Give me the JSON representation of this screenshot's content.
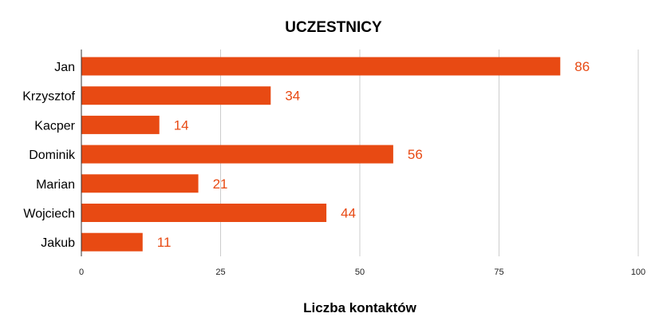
{
  "colors": {
    "bar": "#E84A13",
    "data_label": "#E84A13",
    "grid": "#cccccc",
    "axis": "#333333"
  },
  "chart_data": {
    "type": "bar",
    "orientation": "horizontal",
    "title": "UCZESTNICY",
    "xlabel": "Liczba kontaktów",
    "ylabel": "",
    "categories": [
      "Jan",
      "Krzysztof",
      "Kacper",
      "Dominik",
      "Marian",
      "Wojciech",
      "Jakub"
    ],
    "values": [
      86,
      34,
      14,
      56,
      21,
      44,
      11
    ],
    "xlim": [
      0,
      100
    ],
    "xticks": [
      "0",
      "25",
      "50",
      "75",
      "100"
    ],
    "grid": true,
    "legend": "none"
  }
}
